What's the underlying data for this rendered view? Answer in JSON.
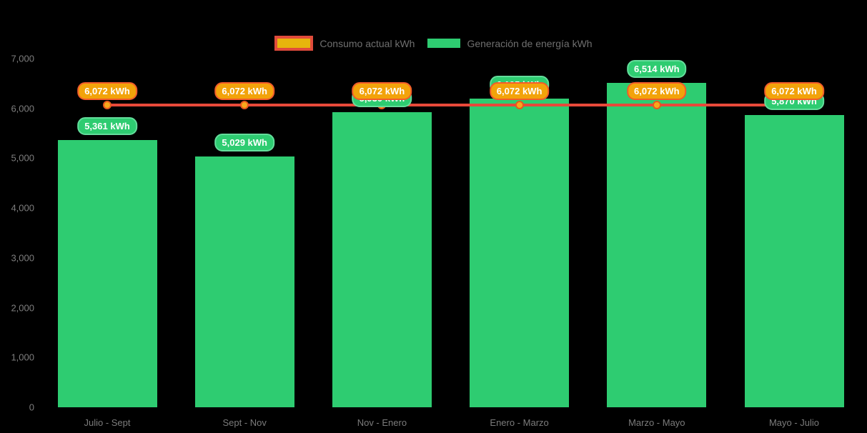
{
  "chart_data": {
    "type": "bar",
    "title": "",
    "categories": [
      "Julio - Sept",
      "Sept - Nov",
      "Nov - Enero",
      "Enero - Marzo",
      "Marzo - Mayo",
      "Mayo - Julio"
    ],
    "series": [
      {
        "name": "Consumo actual kWh",
        "type": "line",
        "color": "#e8493a",
        "values": [
          6072,
          6072,
          6072,
          6072,
          6072,
          6072
        ]
      },
      {
        "name": "Generación de energía kWh",
        "type": "bar",
        "color": "#2ecc71",
        "values": [
          5361,
          5029,
          5930,
          6195,
          6514,
          5870
        ]
      }
    ],
    "bar_labels": [
      "5,361 kWh",
      "5,029 kWh",
      "5,930 kWh",
      "6,195 kWh",
      "6,514 kWh",
      "5,870 kWh"
    ],
    "line_labels": [
      "6,072 kWh",
      "6,072 kWh",
      "6,072 kWh",
      "6,072 kWh",
      "6,072 kWh",
      "6,072 kWh"
    ],
    "y_ticks": [
      "0",
      "1,000",
      "2,000",
      "3,000",
      "4,000",
      "5,000",
      "6,000",
      "7,000"
    ],
    "ylim": [
      0,
      7000
    ],
    "grid": false,
    "legend_position": "top"
  },
  "legend": {
    "items": [
      {
        "label": "Consumo actual kWh",
        "fill": "#e7b50c",
        "border": "#e04b3b"
      },
      {
        "label": "Generación de energía kWh",
        "fill": "#2ecc71",
        "border": "#2ecc71"
      }
    ]
  },
  "colors": {
    "background": "#000000",
    "bar_green": "#2ecc71",
    "line_red": "#e8493a",
    "dot_fill": "#f7a81b",
    "dot_ring": "#e8581e",
    "green_pill_bg": "#2ecc71",
    "green_pill_border": "#63dd9b",
    "orange_pill_bg": "#f2a30a",
    "orange_pill_border": "#f25c2a",
    "axis_text": "#7e7e7e",
    "legend_text": "#6f6f6f"
  }
}
